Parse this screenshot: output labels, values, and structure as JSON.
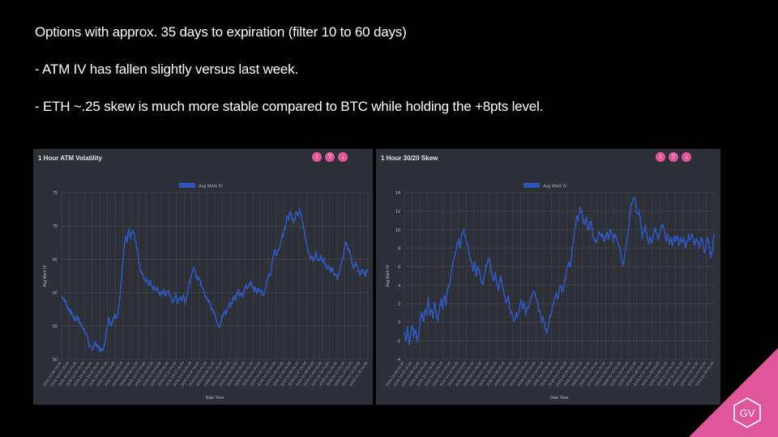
{
  "bullets": {
    "line1": "Options with approx. 35 days to expiration (filter 10 to 60 days)",
    "line2": "- ATM IV has fallen slightly versus last week.",
    "line3": "- ETH ~.25 skew is much more stable compared to BTC while holding the +8pts level."
  },
  "logo": {
    "text": "GV"
  },
  "colors": {
    "series": "#2f56b8",
    "panel": "#2e3038",
    "accent": "#e0569a"
  },
  "chart_data": [
    {
      "type": "line",
      "title": "1 Hour ATM Volatility",
      "xlabel": "Date Time",
      "ylabel": "Avg Mark IV",
      "legend": "top-center",
      "ylim": [
        50,
        75
      ],
      "yticks": [
        "50",
        "55",
        "60",
        "65",
        "70",
        "75"
      ],
      "series": [
        {
          "name": "Avg Mark IV",
          "values": [
            59.5,
            59.2,
            58.8,
            58.5,
            57.8,
            57.5,
            57,
            56.8,
            56.2,
            55.8,
            56.5,
            56,
            55.4,
            55.2,
            54.8,
            54.2,
            53.8,
            53.5,
            52,
            51.8,
            51.6,
            52,
            52.4,
            52.2,
            51.8,
            51.4,
            51.6,
            51.2,
            52.2,
            53.5,
            55,
            56.5,
            55.2,
            55.6,
            56.2,
            56.8,
            56,
            57.2,
            58.8,
            61.5,
            64,
            66.5,
            68.5,
            67.5,
            69.5,
            68.2,
            68.8,
            69.3,
            68.2,
            67,
            66.2,
            64.2,
            63.2,
            62.8,
            62.2,
            61.6,
            62.2,
            61.2,
            61.8,
            61.2,
            60.6,
            60.9,
            60.4,
            60.6,
            59.6,
            60.1,
            59.9,
            60.2,
            59.6,
            59.9,
            60.3,
            59.6,
            59.1,
            58.6,
            58.9,
            59.8,
            58.6,
            58.9,
            59.4,
            58.9,
            59.6,
            58.6,
            59.4,
            60.6,
            61.6,
            62.2,
            63.4,
            63.8,
            62.7,
            62.1,
            62.6,
            61.6,
            61.1,
            60.6,
            59.6,
            59.1,
            58.9,
            58.6,
            57.9,
            57.4,
            57.1,
            56.6,
            55.6,
            55.1,
            54.9,
            56.1,
            56.6,
            57.1,
            56.9,
            57.6,
            58.6,
            58.1,
            58.6,
            59.4,
            59.1,
            59.9,
            60.4,
            59.6,
            60.1,
            59.6,
            60.4,
            61.1,
            60.6,
            60.9,
            61.6,
            61.1,
            60.4,
            60.6,
            59.9,
            60.6,
            59.9,
            60.4,
            59.6,
            59.9,
            61.1,
            62.1,
            63.1,
            62.6,
            64.1,
            65.6,
            66.6,
            65.6,
            66.1,
            66.6,
            67.6,
            68.6,
            69.1,
            70.1,
            71.6,
            71.1,
            72.1,
            71.6,
            70.6,
            71.1,
            72.1,
            71.6,
            72.6,
            71.9,
            70.6,
            69.6,
            68.1,
            67.1,
            66.1,
            65.1,
            65.4,
            64.6,
            65.4,
            65.9,
            65.1,
            64.6,
            65.4,
            64.6,
            65.1,
            64.1,
            63.6,
            64.1,
            63.1,
            63.6,
            63.4,
            62.6,
            62.9,
            62.1,
            62.9,
            63.9,
            64.9,
            65.6,
            67.6,
            67.1,
            66.6,
            66.1,
            65.1,
            64.1,
            63.6,
            64.6,
            64.1,
            63.1,
            62.6,
            63.6,
            63.1,
            62.6,
            63.1,
            63.4
          ]
        }
      ],
      "x_ticks": [
        "2020-10-06 01:00",
        "2020-10-07 01:00",
        "2020-10-08 01:00",
        "2020-10-09 01:00",
        "2020-10-10 01:00",
        "2020-10-11 01:00",
        "2020-10-12 01:00",
        "2020-10-13 01:00",
        "2020-10-14 01:00",
        "2020-10-15 01:00",
        "2020-10-16 01:00",
        "2020-10-17 01:00",
        "2020-10-18 01:00",
        "2020-10-19 01:00",
        "2020-10-20 01:00",
        "2020-10-21 01:00",
        "2020-10-22 01:00",
        "2020-10-23 01:00",
        "2020-10-24 01:00",
        "2020-10-25 01:00",
        "2020-10-26 01:00",
        "2020-10-27 01:00",
        "2020-10-28 01:00",
        "2020-10-29 01:00",
        "2020-10-30 01:00",
        "2020-10-31 01:00",
        "2020-11-01 01:00",
        "2020-11-02 01:00",
        "2020-11-03 01:00",
        "2020-11-04 01:00",
        "2020-11-05 01:00",
        "2020-11-06 01:00",
        "2020-11-07 01:00",
        "2020-11-08 01:00",
        "2020-11-09 01:00",
        "2020-11-10 01:00",
        "2020-11-11 01:00",
        "2020-11-12 01:00",
        "2020-11-13 01:00",
        "2020-11-14 01:00",
        "2020-11-15 01:00"
      ]
    },
    {
      "type": "line",
      "title": "1 Hour 30/20 Skew",
      "xlabel": "Date Time",
      "ylabel": "Avg Mark IV",
      "legend": "top-center",
      "ylim": [
        -4,
        14
      ],
      "yticks": [
        "-4",
        "-2",
        "0",
        "2",
        "4",
        "6",
        "8",
        "10",
        "12",
        "14"
      ],
      "series": [
        {
          "name": "Avg Mark IV",
          "values": [
            -1,
            -2,
            -0.5,
            -2.5,
            -1,
            -0.2,
            -1.5,
            -0.8,
            -2,
            -1.2,
            0.5,
            1,
            0,
            1.5,
            1,
            2.5,
            0.8,
            1.5,
            0.5,
            2,
            1,
            0.2,
            1.5,
            2.5,
            1.5,
            3,
            2,
            3.5,
            4,
            5,
            6,
            7,
            7.5,
            8.5,
            9,
            8,
            9.5,
            10,
            9.5,
            8.5,
            8,
            7,
            6.5,
            5.5,
            6.5,
            5,
            6,
            5.5,
            4.5,
            4,
            5,
            6,
            6.5,
            7,
            6,
            5,
            4.5,
            5.5,
            4,
            3.5,
            5,
            4.5,
            3.5,
            2.5,
            2,
            3,
            1.5,
            1,
            0.5,
            0,
            1,
            0.5,
            1.5,
            2.5,
            1.5,
            2,
            1,
            1.5,
            1.8,
            2.5,
            3,
            3.5,
            3,
            2.5,
            1.5,
            1,
            0.2,
            0.5,
            -0.5,
            -1,
            -0.5,
            0.5,
            1,
            2,
            2.5,
            3,
            2.5,
            3.5,
            4,
            3.2,
            4,
            5,
            6,
            6.5,
            6,
            7.5,
            9,
            10,
            11.5,
            11,
            12.5,
            12,
            11,
            10.5,
            11.5,
            10,
            10.5,
            11,
            9.5,
            9,
            8.5,
            9,
            9.8,
            9.2,
            9.5,
            8.8,
            9.2,
            9.6,
            9,
            10,
            9.4,
            8.8,
            9.6,
            9.2,
            8.6,
            8,
            7,
            6.2,
            7,
            8.5,
            9.5,
            11,
            12.5,
            13,
            13.5,
            12.5,
            11.5,
            12,
            11,
            9.2,
            9.8,
            10.4,
            9.4,
            8.6,
            9.2,
            8.6,
            9.4,
            10.2,
            9.6,
            9,
            9.6,
            10.2,
            10.6,
            9.6,
            8.8,
            9.4,
            8.6,
            9,
            8.4,
            9.2,
            8.8,
            9.4,
            8.2,
            9,
            8.6,
            9.2,
            8,
            8.6,
            9.4,
            8.8,
            9.6,
            9,
            8.4,
            9.2,
            8.6,
            8.2,
            9.2,
            8.6,
            7.4,
            8.2,
            9.2,
            8.4,
            7,
            7.8,
            9.6
          ]
        }
      ],
      "x_ticks": [
        "2020-10-06 01:00",
        "2020-10-07 01:00",
        "2020-10-08 01:00",
        "2020-10-09 01:00",
        "2020-10-10 01:00",
        "2020-10-11 01:00",
        "2020-10-12 01:00",
        "2020-10-13 01:00",
        "2020-10-14 01:00",
        "2020-10-15 01:00",
        "2020-10-16 01:00",
        "2020-10-17 01:00",
        "2020-10-18 01:00",
        "2020-10-19 01:00",
        "2020-10-20 01:00",
        "2020-10-21 01:00",
        "2020-10-22 01:00",
        "2020-10-23 01:00",
        "2020-10-24 01:00",
        "2020-10-25 01:00",
        "2020-10-26 01:00",
        "2020-10-27 01:00",
        "2020-10-28 01:00",
        "2020-10-29 01:00",
        "2020-10-30 01:00",
        "2020-10-31 01:00",
        "2020-11-01 01:00",
        "2020-11-02 01:00",
        "2020-11-03 01:00",
        "2020-11-04 01:00",
        "2020-11-05 01:00",
        "2020-11-06 01:00",
        "2020-11-07 01:00",
        "2020-11-08 01:00",
        "2020-11-09 01:00",
        "2020-11-10 01:00",
        "2020-11-11 01:00",
        "2020-11-12 01:00",
        "2020-11-13 01:00",
        "2020-11-14 01:00",
        "2020-11-15 01:00"
      ]
    }
  ]
}
